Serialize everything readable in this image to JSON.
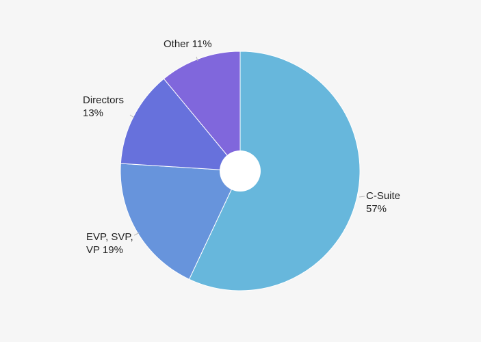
{
  "chart_data": {
    "type": "pie",
    "donut": true,
    "legend": "none",
    "slices": [
      {
        "label": "C-Suite",
        "value": 57,
        "value_text": "57%",
        "color": "#67b7dc"
      },
      {
        "label": "EVP, SVP, VP",
        "value": 19,
        "value_text": "19%",
        "color": "#6794dc"
      },
      {
        "label": "Directors",
        "value": 13,
        "value_text": "13%",
        "color": "#6771dc"
      },
      {
        "label": "Other",
        "value": 11,
        "value_text": "11%",
        "color": "#8067dc"
      }
    ]
  }
}
